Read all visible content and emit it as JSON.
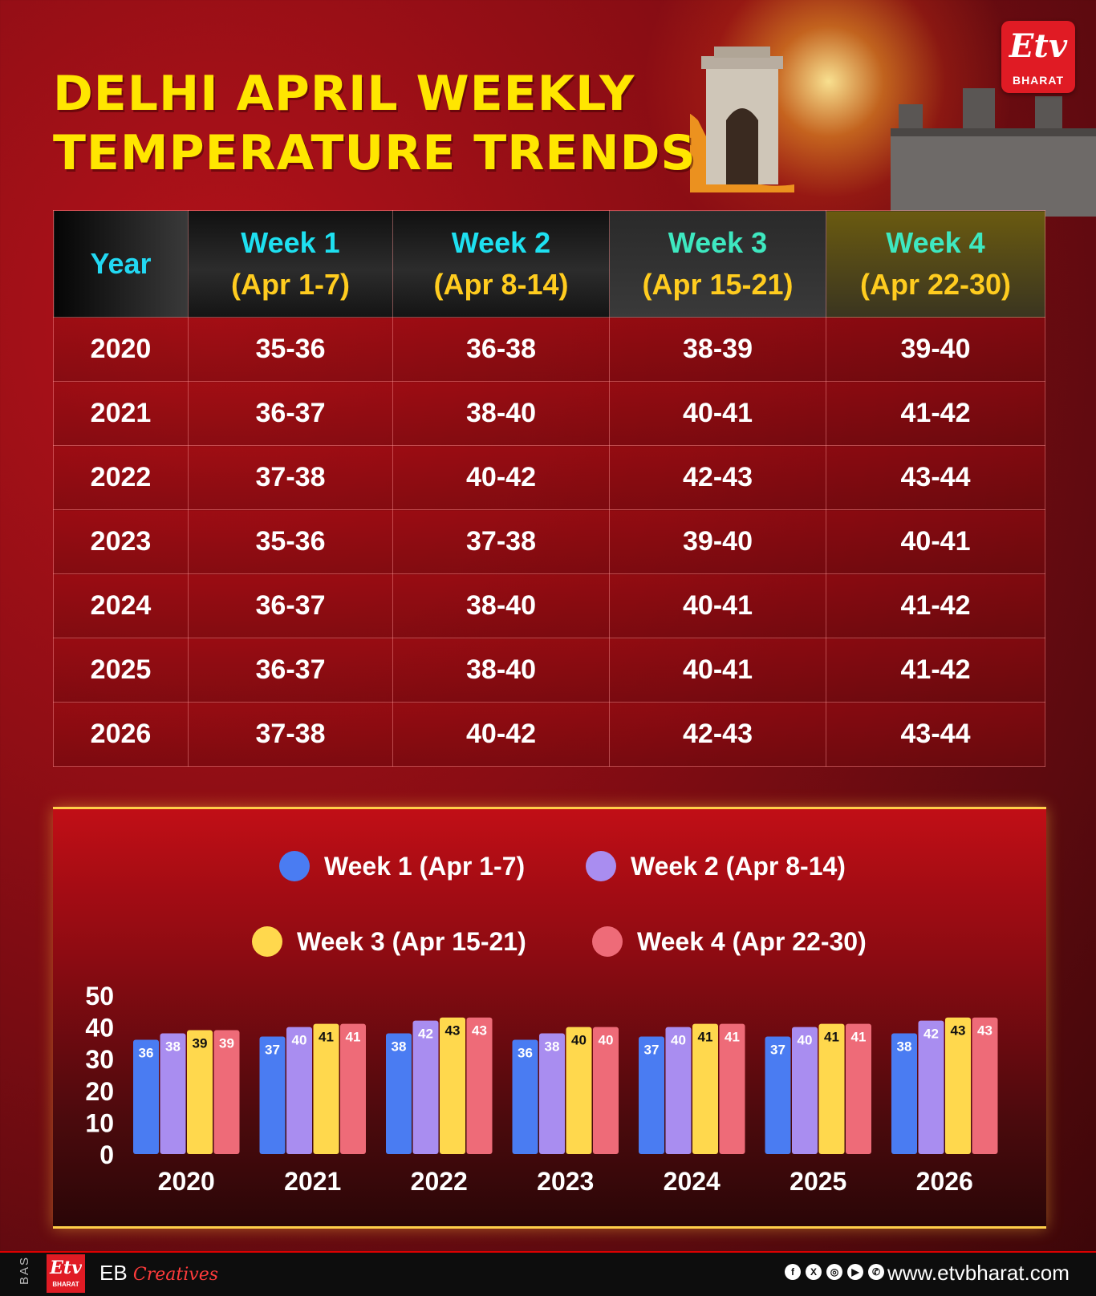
{
  "title": {
    "line1": "DELHI APRIL WEEKLY",
    "line2": "TEMPERATURE TRENDS"
  },
  "brand": {
    "logo_mark": "Etv",
    "logo_sub": "BHARAT"
  },
  "table": {
    "year_header": "Year",
    "week_headers": [
      {
        "week": "Week 1",
        "range": "(Apr 1-7)"
      },
      {
        "week": "Week 2",
        "range": "(Apr 8-14)"
      },
      {
        "week": "Week 3",
        "range": "(Apr 15-21)"
      },
      {
        "week": "Week 4",
        "range": "(Apr 22-30)"
      }
    ],
    "rows": [
      {
        "year": "2020",
        "cells": [
          "35-36",
          "36-38",
          "38-39",
          "39-40"
        ]
      },
      {
        "year": "2021",
        "cells": [
          "36-37",
          "38-40",
          "40-41",
          "41-42"
        ]
      },
      {
        "year": "2022",
        "cells": [
          "37-38",
          "40-42",
          "42-43",
          "43-44"
        ]
      },
      {
        "year": "2023",
        "cells": [
          "35-36",
          "37-38",
          "39-40",
          "40-41"
        ]
      },
      {
        "year": "2024",
        "cells": [
          "36-37",
          "38-40",
          "40-41",
          "41-42"
        ]
      },
      {
        "year": "2025",
        "cells": [
          "36-37",
          "38-40",
          "40-41",
          "41-42"
        ]
      },
      {
        "year": "2026",
        "cells": [
          "37-38",
          "40-42",
          "42-43",
          "43-44"
        ]
      }
    ]
  },
  "chart_data": {
    "type": "bar",
    "categories": [
      "2020",
      "2021",
      "2022",
      "2023",
      "2024",
      "2025",
      "2026"
    ],
    "series": [
      {
        "name": "Week 1 (Apr 1-7)",
        "color": "#4a7cf2",
        "label_color": "#ffffff",
        "values": [
          36,
          37,
          38,
          36,
          37,
          37,
          38
        ]
      },
      {
        "name": "Week 2 (Apr 8-14)",
        "color": "#a98df0",
        "label_color": "#ffffff",
        "values": [
          38,
          40,
          42,
          38,
          40,
          40,
          42
        ]
      },
      {
        "name": "Week 3 (Apr 15-21)",
        "color": "#ffd84d",
        "label_color": "#111111",
        "values": [
          39,
          41,
          43,
          40,
          41,
          41,
          43
        ]
      },
      {
        "name": "Week 4 (Apr 22-30)",
        "color": "#ee6b78",
        "label_color": "#ffffff",
        "values": [
          39,
          41,
          43,
          40,
          41,
          41,
          43
        ]
      }
    ],
    "ylim": [
      0,
      50
    ],
    "yticks": [
      "0",
      "10",
      "20",
      "30",
      "40",
      "50"
    ],
    "title": "",
    "xlabel": "",
    "ylabel": "",
    "legend_position": "top",
    "grid": false
  },
  "footer": {
    "code": "BAS",
    "logo_mark": "Etv",
    "logo_sub": "BHARAT",
    "eb": "EB",
    "creatives": "Creatives",
    "social_icons": [
      "facebook-icon",
      "x-icon",
      "instagram-icon",
      "youtube-icon",
      "whatsapp-icon"
    ],
    "social_glyphs": [
      "f",
      "X",
      "◎",
      "▶",
      "✆"
    ],
    "url": "www.etvbharat.com"
  }
}
